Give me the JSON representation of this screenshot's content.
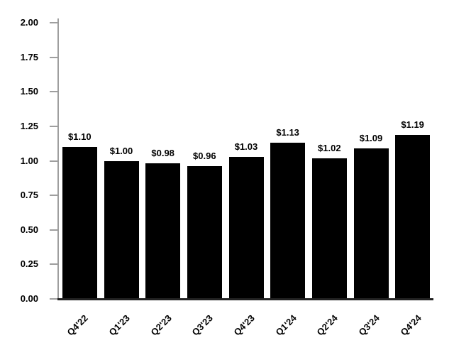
{
  "chart_data": {
    "type": "bar",
    "title": "",
    "xlabel": "",
    "ylabel": "",
    "categories": [
      "Q4'22",
      "Q1'23",
      "Q2'23",
      "Q3'23",
      "Q4'23",
      "Q1'24",
      "Q2'24",
      "Q3'24",
      "Q4'24"
    ],
    "values": [
      1.1,
      1.0,
      0.98,
      0.96,
      1.03,
      1.13,
      1.02,
      1.09,
      1.19
    ],
    "bar_labels": [
      "$1.10",
      "$1.00",
      "$0.98",
      "$0.96",
      "$1.03",
      "$1.13",
      "$1.02",
      "$1.09",
      "$1.19"
    ],
    "ylim": [
      0.0,
      2.0
    ],
    "ytick_step": 0.25,
    "ytick_labels": [
      "0.00",
      "0.25",
      "0.50",
      "0.75",
      "1.00",
      "1.25",
      "1.50",
      "1.75",
      "2.00"
    ],
    "grid": false,
    "legend": null,
    "bar_color": "#000000",
    "axis_color": "#9e9e9e",
    "baseline_color": "#222222",
    "text_color": "#000000"
  }
}
